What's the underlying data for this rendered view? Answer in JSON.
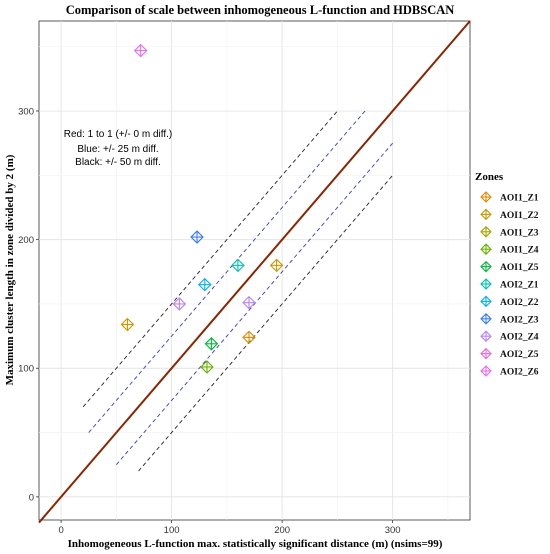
{
  "chart_data": {
    "type": "scatter",
    "title": "Comparison of scale between inhomogeneous L-function and HDBSCAN",
    "xlabel": "Inhomogeneous L-function max. statistically significant distance (m) (nsims=99)",
    "ylabel": "Maximum cluster length in zone divided by 2 (m)",
    "xlim": [
      -20,
      370
    ],
    "ylim": [
      -18,
      370
    ],
    "x_ticks": [
      0,
      100,
      200,
      300
    ],
    "y_ticks": [
      0,
      100,
      200,
      300
    ],
    "grid": true,
    "legend_title": "Zones",
    "legend_position": "right",
    "annotation": [
      "Red: 1 to 1 (+/- 0 m diff.)",
      "Blue: +/- 25 m diff.",
      "Black: +/- 50 m diff."
    ],
    "reference_lines": [
      {
        "offset": 0,
        "color": "#8B2500",
        "style": "solid"
      },
      {
        "offset": 25,
        "color": "#3a3acc",
        "style": "dashed"
      },
      {
        "offset": -25,
        "color": "#3a3acc",
        "style": "dashed"
      },
      {
        "offset": 50,
        "color": "#222222",
        "style": "dashed"
      },
      {
        "offset": -50,
        "color": "#222222",
        "style": "dashed"
      }
    ],
    "series": [
      {
        "name": "AOI1_Z1",
        "color": "#E58700",
        "x": [
          170
        ],
        "y": [
          124
        ]
      },
      {
        "name": "AOI1_Z2",
        "color": "#C99800",
        "x": [
          60,
          195
        ],
        "y": [
          134,
          180
        ]
      },
      {
        "name": "AOI1_Z3",
        "color": "#A3A500",
        "x": [],
        "y": []
      },
      {
        "name": "AOI1_Z4",
        "color": "#6BB100",
        "x": [
          132
        ],
        "y": [
          101
        ]
      },
      {
        "name": "AOI1_Z5",
        "color": "#00BA38",
        "x": [
          136
        ],
        "y": [
          119
        ]
      },
      {
        "name": "AOI2_Z1",
        "color": "#00C0AF",
        "x": [
          160
        ],
        "y": [
          180
        ]
      },
      {
        "name": "AOI2_Z2",
        "color": "#00B0F6",
        "x": [
          130
        ],
        "y": [
          165
        ]
      },
      {
        "name": "AOI2_Z3",
        "color": "#3B7BFF",
        "x": [
          123
        ],
        "y": [
          202
        ]
      },
      {
        "name": "AOI2_Z4",
        "color": "#B983FF",
        "x": [
          107,
          170
        ],
        "y": [
          150,
          151
        ]
      },
      {
        "name": "AOI2_Z5",
        "color": "#F064DC",
        "x": [],
        "y": []
      },
      {
        "name": "AOI2_Z6",
        "color": "#E76BF3",
        "x": [
          72
        ],
        "y": [
          347
        ]
      }
    ]
  }
}
